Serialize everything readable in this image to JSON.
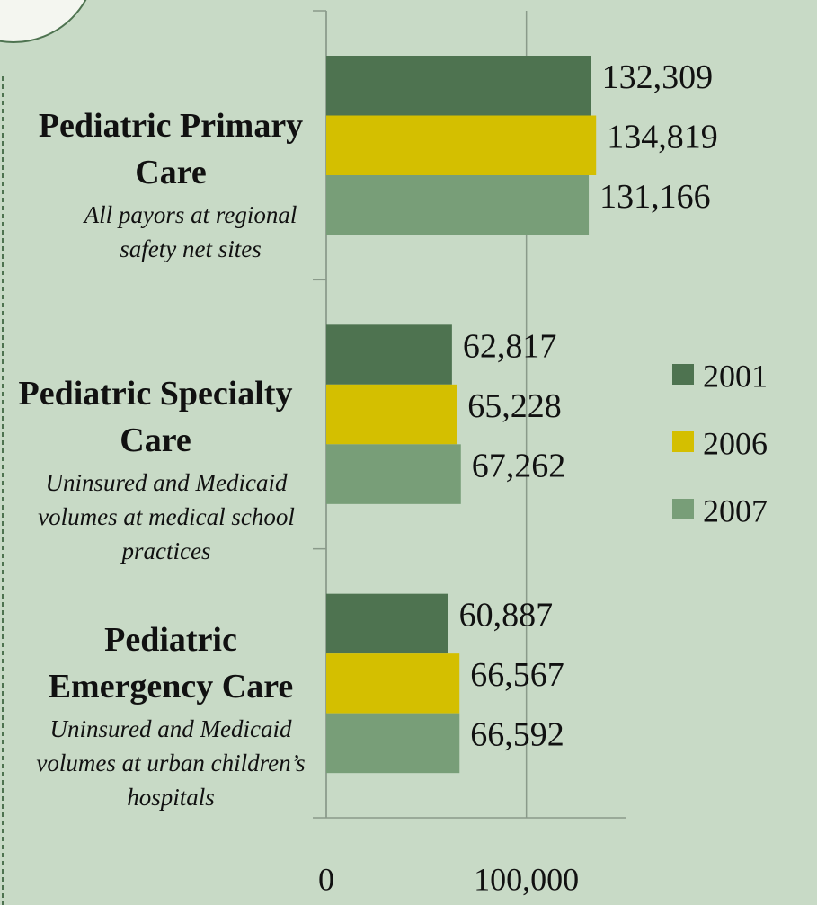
{
  "chart_data": {
    "type": "bar",
    "orientation": "horizontal",
    "categories": [
      "Pediatric Primary Care",
      "Pediatric Specialty Care",
      "Pediatric Emergency Care"
    ],
    "category_descriptions": [
      "All payors at regional safety net sites",
      "Uninsured and Medicaid volumes at medical school practices",
      "Uninsured and Medicaid volumes at urban children’s hospitals"
    ],
    "series": [
      {
        "name": "2001",
        "color": "#4e7350",
        "values": [
          132309,
          62817,
          60887
        ],
        "value_labels": [
          "132,309",
          "62,817",
          "60,887"
        ]
      },
      {
        "name": "2006",
        "color": "#d4bf00",
        "values": [
          134819,
          65228,
          66567
        ],
        "value_labels": [
          "134,819",
          "65,228",
          "66,567"
        ]
      },
      {
        "name": "2007",
        "color": "#789e78",
        "values": [
          131166,
          67262,
          66592
        ],
        "value_labels": [
          "131,166",
          "67,262",
          "66,592"
        ]
      }
    ],
    "xlim": [
      0,
      150000
    ],
    "xticks": [
      0,
      {
        "value": 100000,
        "label": "100,000"
      }
    ],
    "grid": true,
    "legend": "right"
  }
}
